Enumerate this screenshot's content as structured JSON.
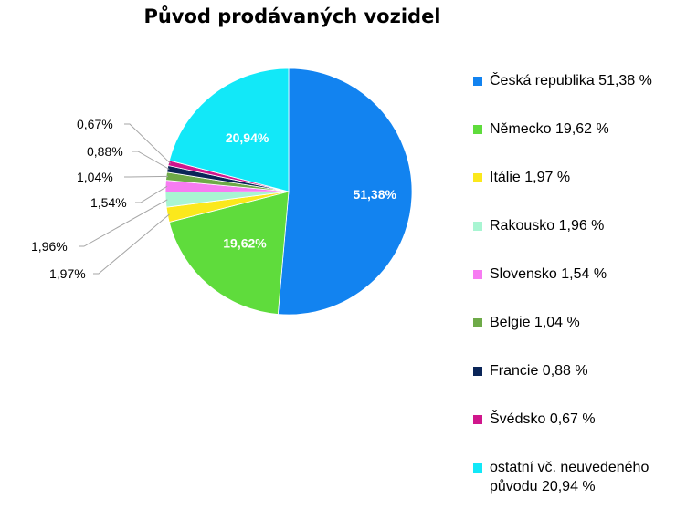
{
  "chart_data": {
    "type": "pie",
    "title": "Původ prodávaných vozidel",
    "slices": [
      {
        "label": "Česká republika",
        "legend": "Česká republika 51,38 %",
        "value": 51.38,
        "data_label": "51,38%",
        "color": "#1283f0"
      },
      {
        "label": "Německo",
        "legend": "Německo 19,62 %",
        "value": 19.62,
        "data_label": "19,62%",
        "color": "#5fdc3c"
      },
      {
        "label": "Itálie",
        "legend": "Itálie 1,97 %",
        "value": 1.97,
        "data_label": "1,97%",
        "color": "#fbe81c"
      },
      {
        "label": "Rakousko",
        "legend": "Rakousko 1,96 %",
        "value": 1.96,
        "data_label": "1,96%",
        "color": "#a8f5d2"
      },
      {
        "label": "Slovensko",
        "legend": "Slovensko 1,54 %",
        "value": 1.54,
        "data_label": "1,54%",
        "color": "#f77cf2"
      },
      {
        "label": "Belgie",
        "legend": "Belgie 1,04 %",
        "value": 1.04,
        "data_label": "1,04%",
        "color": "#6eaa48"
      },
      {
        "label": "Francie",
        "legend": "Francie 0,88 %",
        "value": 0.88,
        "data_label": "0,88%",
        "color": "#0a2558"
      },
      {
        "label": "Švédsko",
        "legend": "Švédsko 0,67 %",
        "value": 0.67,
        "data_label": "0,67%",
        "color": "#d0168c"
      },
      {
        "label": "ostatní vč. neuvedeného původu",
        "legend": "ostatní vč. neuvedeného původu 20,94 %",
        "value": 20.94,
        "data_label": "20,94%",
        "color": "#12e8f8"
      }
    ],
    "legend_position": "right"
  }
}
